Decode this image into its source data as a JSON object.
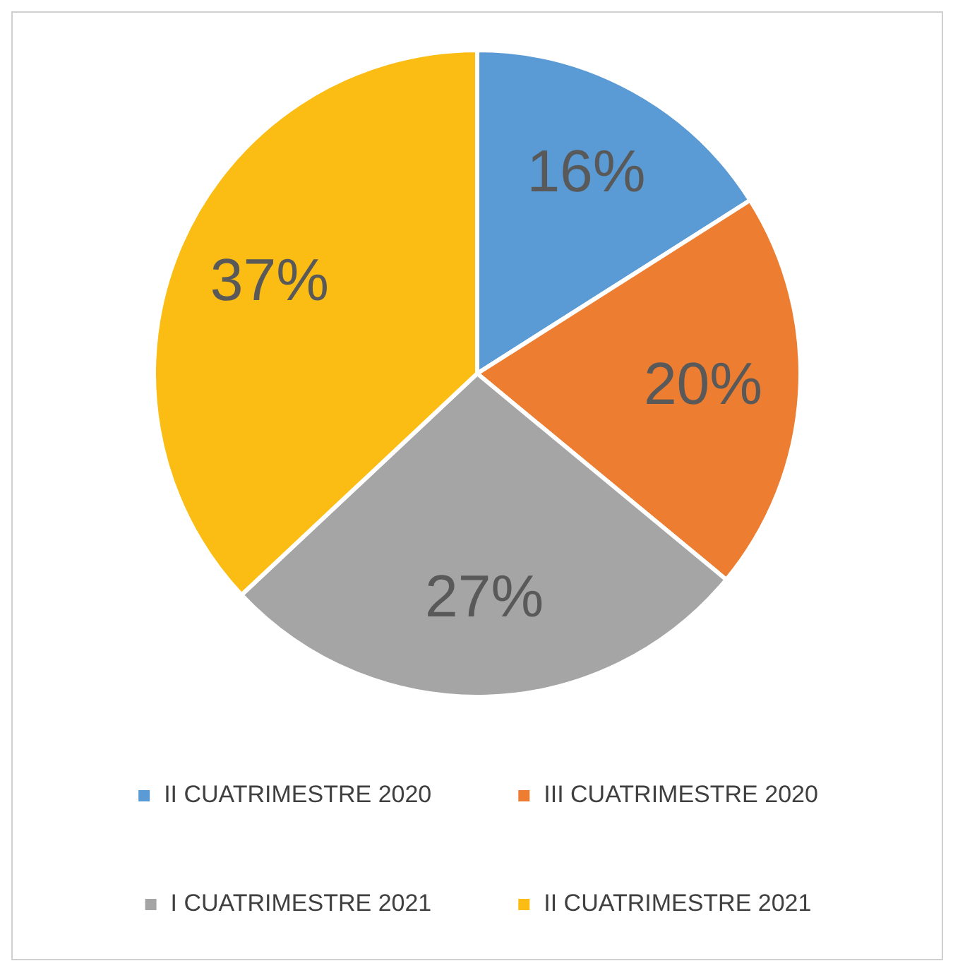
{
  "chart_data": {
    "type": "pie",
    "categories": [
      "II CUATRIMESTRE 2020",
      "III CUATRIMESTRE 2020",
      "I CUATRIMESTRE 2021",
      "II CUATRIMESTRE 2021"
    ],
    "values": [
      16,
      20,
      27,
      37
    ],
    "colors": [
      "#5b9bd5",
      "#ed7d31",
      "#a5a5a5",
      "#fbbd13"
    ],
    "value_labels": [
      "16%",
      "20%",
      "27%",
      "37%"
    ],
    "legend": "bottom"
  }
}
